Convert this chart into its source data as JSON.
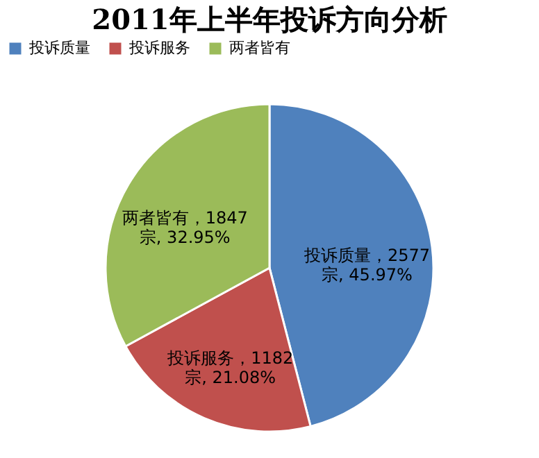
{
  "chart_data": {
    "type": "pie",
    "title": "2011年上半年投诉方向分析",
    "categories": [
      "投诉质量",
      "投诉服务",
      "两者皆有"
    ],
    "values": [
      2577,
      1182,
      1847
    ],
    "colors": [
      "#4f81bd",
      "#c0504d",
      "#9bbb59"
    ],
    "value_labels": [
      "投诉质量，2577\n宗, 45.97%",
      "投诉服务，1182\n宗, 21.08%",
      "两者皆有，1847\n宗, 32.95%"
    ],
    "legend": "top"
  }
}
